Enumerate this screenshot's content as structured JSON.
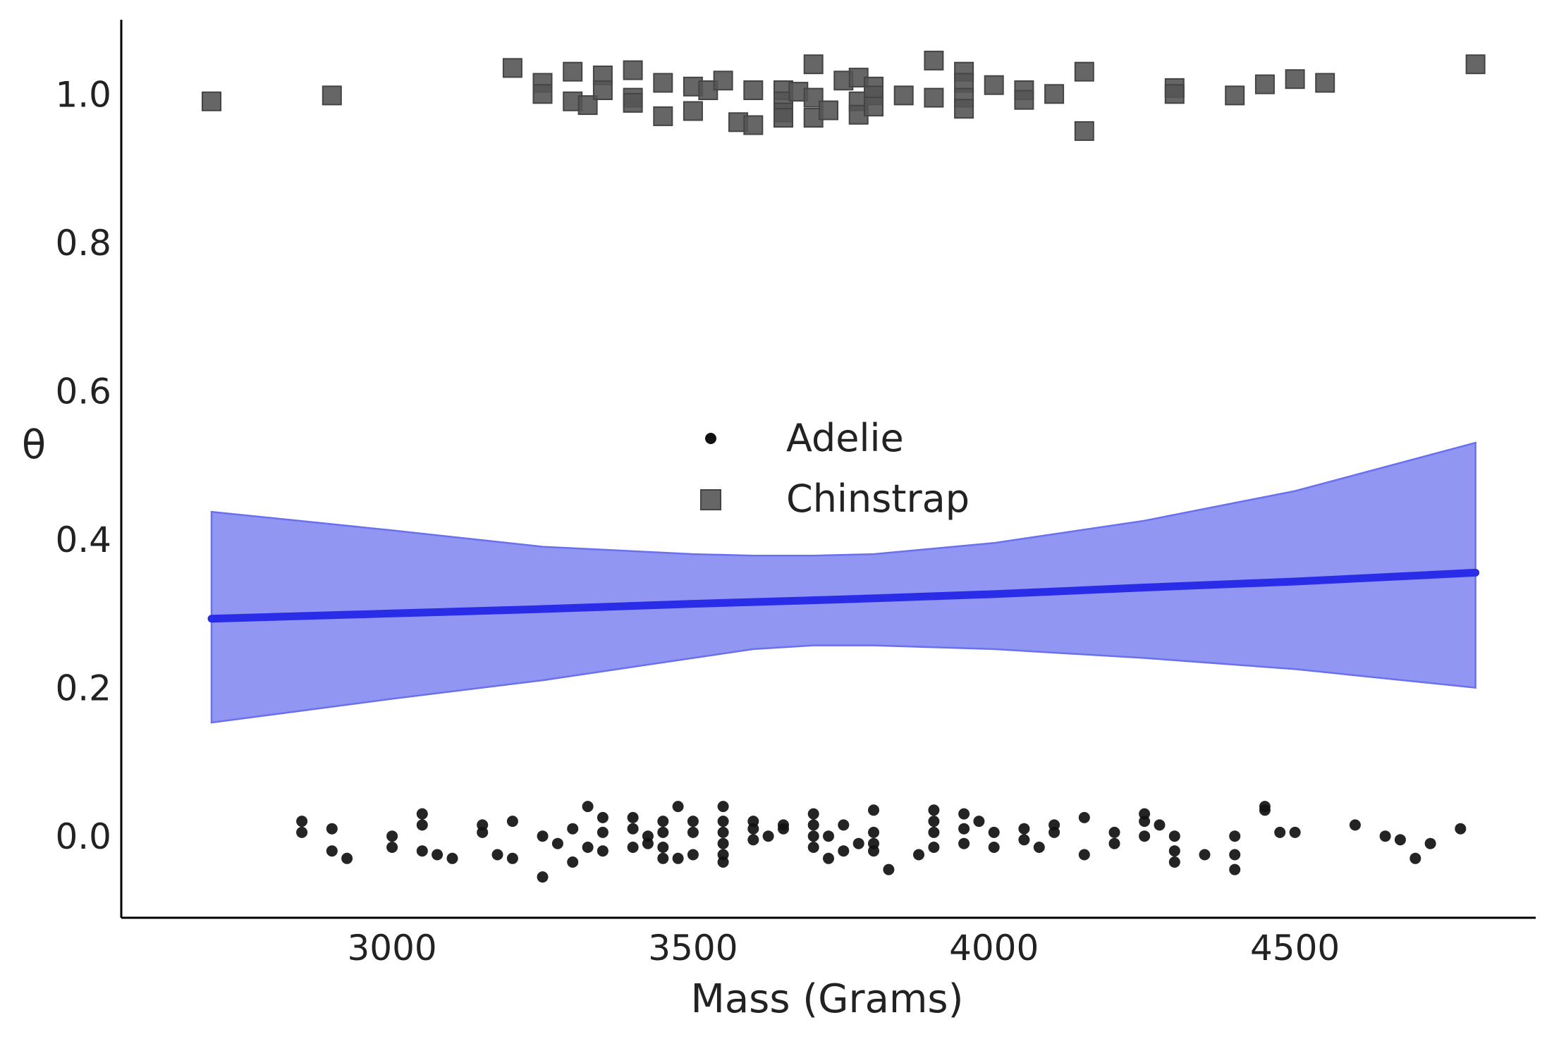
{
  "chart_data": {
    "type": "scatter",
    "xlabel": "Mass (Grams)",
    "ylabel": "θ",
    "xlim": [
      2550,
      4900
    ],
    "ylim": [
      -0.11,
      1.1
    ],
    "xticks": [
      "3000",
      "3500",
      "4000",
      "4500"
    ],
    "yticks": [
      "0.0",
      "0.2",
      "0.4",
      "0.6",
      "0.8",
      "1.0"
    ],
    "grid": false,
    "legend": {
      "placement": "center",
      "entries": [
        {
          "label": "Adelie",
          "marker": "circle",
          "color": "#111111"
        },
        {
          "label": "Chinstrap",
          "marker": "square",
          "color": "#555555"
        }
      ]
    },
    "series": [
      {
        "name": "Adelie",
        "marker": "circle",
        "color": "#111111",
        "points": [
          [
            2850,
            0.02
          ],
          [
            2850,
            0.005
          ],
          [
            2900,
            0.01
          ],
          [
            2900,
            -0.02
          ],
          [
            2925,
            -0.03
          ],
          [
            3000,
            0.0
          ],
          [
            3000,
            -0.015
          ],
          [
            3050,
            0.03
          ],
          [
            3050,
            0.015
          ],
          [
            3050,
            -0.02
          ],
          [
            3075,
            -0.025
          ],
          [
            3100,
            -0.03
          ],
          [
            3150,
            0.015
          ],
          [
            3150,
            0.005
          ],
          [
            3175,
            -0.025
          ],
          [
            3200,
            0.02
          ],
          [
            3200,
            -0.03
          ],
          [
            3250,
            -0.055
          ],
          [
            3250,
            0.0
          ],
          [
            3275,
            -0.01
          ],
          [
            3300,
            0.01
          ],
          [
            3300,
            -0.035
          ],
          [
            3325,
            0.04
          ],
          [
            3325,
            -0.015
          ],
          [
            3350,
            0.025
          ],
          [
            3350,
            0.005
          ],
          [
            3350,
            -0.02
          ],
          [
            3400,
            0.025
          ],
          [
            3400,
            0.01
          ],
          [
            3400,
            -0.015
          ],
          [
            3425,
            0.0
          ],
          [
            3425,
            -0.01
          ],
          [
            3450,
            0.02
          ],
          [
            3450,
            0.005
          ],
          [
            3450,
            -0.015
          ],
          [
            3450,
            -0.03
          ],
          [
            3475,
            0.04
          ],
          [
            3475,
            -0.03
          ],
          [
            3500,
            0.02
          ],
          [
            3500,
            0.005
          ],
          [
            3500,
            -0.025
          ],
          [
            3550,
            0.04
          ],
          [
            3550,
            0.02
          ],
          [
            3550,
            0.005
          ],
          [
            3550,
            -0.01
          ],
          [
            3550,
            -0.025
          ],
          [
            3550,
            -0.035
          ],
          [
            3600,
            0.02
          ],
          [
            3600,
            0.01
          ],
          [
            3600,
            -0.005
          ],
          [
            3625,
            0.0
          ],
          [
            3650,
            0.015
          ],
          [
            3650,
            0.01
          ],
          [
            3700,
            0.03
          ],
          [
            3700,
            0.015
          ],
          [
            3700,
            0.0
          ],
          [
            3700,
            -0.015
          ],
          [
            3725,
            -0.03
          ],
          [
            3725,
            0.0
          ],
          [
            3750,
            0.015
          ],
          [
            3750,
            -0.02
          ],
          [
            3775,
            -0.01
          ],
          [
            3800,
            0.035
          ],
          [
            3800,
            0.005
          ],
          [
            3800,
            -0.01
          ],
          [
            3800,
            -0.02
          ],
          [
            3825,
            -0.045
          ],
          [
            3875,
            -0.025
          ],
          [
            3900,
            0.035
          ],
          [
            3900,
            0.02
          ],
          [
            3900,
            0.005
          ],
          [
            3900,
            -0.015
          ],
          [
            3950,
            0.03
          ],
          [
            3950,
            0.01
          ],
          [
            3950,
            -0.01
          ],
          [
            3975,
            0.02
          ],
          [
            4000,
            0.005
          ],
          [
            4000,
            -0.015
          ],
          [
            4050,
            0.01
          ],
          [
            4050,
            -0.005
          ],
          [
            4075,
            -0.015
          ],
          [
            4100,
            0.015
          ],
          [
            4100,
            0.005
          ],
          [
            4150,
            0.025
          ],
          [
            4150,
            -0.025
          ],
          [
            4200,
            0.005
          ],
          [
            4200,
            -0.01
          ],
          [
            4250,
            0.03
          ],
          [
            4250,
            0.02
          ],
          [
            4250,
            0.0
          ],
          [
            4275,
            0.015
          ],
          [
            4300,
            0.0
          ],
          [
            4300,
            -0.02
          ],
          [
            4300,
            -0.035
          ],
          [
            4350,
            -0.025
          ],
          [
            4400,
            0.0
          ],
          [
            4400,
            -0.025
          ],
          [
            4400,
            -0.045
          ],
          [
            4450,
            0.04
          ],
          [
            4450,
            0.035
          ],
          [
            4475,
            0.005
          ],
          [
            4500,
            0.005
          ],
          [
            4600,
            0.015
          ],
          [
            4650,
            0.0
          ],
          [
            4675,
            -0.005
          ],
          [
            4700,
            -0.03
          ],
          [
            4725,
            -0.01
          ],
          [
            4775,
            0.01
          ]
        ]
      },
      {
        "name": "Chinstrap",
        "marker": "square",
        "color": "#555555",
        "points": [
          [
            2700,
            0.99
          ],
          [
            2900,
            0.998
          ],
          [
            3200,
            1.035
          ],
          [
            3250,
            1.015
          ],
          [
            3250,
            1.0
          ],
          [
            3300,
            1.03
          ],
          [
            3300,
            0.99
          ],
          [
            3325,
            0.985
          ],
          [
            3350,
            1.025
          ],
          [
            3350,
            1.005
          ],
          [
            3400,
            1.032
          ],
          [
            3400,
            0.995
          ],
          [
            3400,
            0.988
          ],
          [
            3450,
            1.015
          ],
          [
            3450,
            0.97
          ],
          [
            3500,
            1.01
          ],
          [
            3500,
            0.977
          ],
          [
            3525,
            1.005
          ],
          [
            3550,
            1.018
          ],
          [
            3575,
            0.962
          ],
          [
            3600,
            1.005
          ],
          [
            3600,
            0.958
          ],
          [
            3650,
            1.005
          ],
          [
            3650,
            0.99
          ],
          [
            3650,
            0.975
          ],
          [
            3650,
            0.968
          ],
          [
            3675,
            1.003
          ],
          [
            3700,
            1.04
          ],
          [
            3700,
            0.995
          ],
          [
            3700,
            0.968
          ],
          [
            3725,
            0.978
          ],
          [
            3750,
            1.018
          ],
          [
            3775,
            1.022
          ],
          [
            3775,
            0.99
          ],
          [
            3775,
            0.972
          ],
          [
            3800,
            1.01
          ],
          [
            3800,
            0.998
          ],
          [
            3800,
            0.983
          ],
          [
            3850,
            0.998
          ],
          [
            3900,
            1.045
          ],
          [
            3900,
            0.995
          ],
          [
            3950,
            1.03
          ],
          [
            3950,
            1.015
          ],
          [
            3950,
            0.995
          ],
          [
            3950,
            0.98
          ],
          [
            4000,
            1.012
          ],
          [
            4050,
            1.005
          ],
          [
            4050,
            0.992
          ],
          [
            4100,
            1.0
          ],
          [
            4150,
            1.03
          ],
          [
            4150,
            0.95
          ],
          [
            4300,
            1.008
          ],
          [
            4300,
            1.0
          ],
          [
            4400,
            0.998
          ],
          [
            4450,
            1.013
          ],
          [
            4500,
            1.02
          ],
          [
            4550,
            1.015
          ],
          [
            4800,
            1.04
          ]
        ]
      },
      {
        "name": "mean",
        "type": "line",
        "color": "#2a2de8",
        "x": [
          2700,
          3000,
          3250,
          3500,
          3750,
          4000,
          4250,
          4500,
          4800
        ],
        "y": [
          0.293,
          0.3,
          0.306,
          0.313,
          0.319,
          0.326,
          0.335,
          0.343,
          0.355
        ]
      },
      {
        "name": "interval",
        "type": "area",
        "color": "#9096f2",
        "x": [
          2700,
          3000,
          3250,
          3500,
          3600,
          3700,
          3800,
          4000,
          4250,
          4500,
          4800
        ],
        "lower": [
          0.153,
          0.185,
          0.21,
          0.24,
          0.252,
          0.257,
          0.257,
          0.252,
          0.24,
          0.225,
          0.2
        ],
        "upper": [
          0.437,
          0.412,
          0.39,
          0.38,
          0.378,
          0.378,
          0.38,
          0.395,
          0.425,
          0.465,
          0.53
        ]
      }
    ]
  }
}
